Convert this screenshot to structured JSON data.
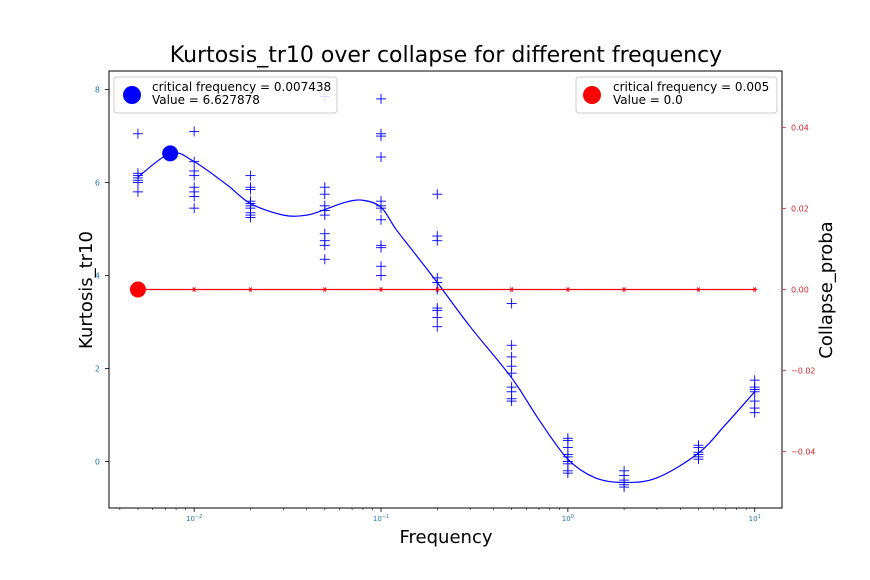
{
  "chart_data": {
    "type": "scatter",
    "title": "Kurtosis_tr10 over collapse for different frequency",
    "xlabel": "Frequency",
    "ylabel": "Kurtosis_tr10",
    "y2label": "Collapse_proba",
    "xscale": "log",
    "xlim": [
      0.0035,
      14
    ],
    "ylim": [
      -1.0,
      8.4
    ],
    "y2lim": [
      -0.054,
      0.054
    ],
    "x_ticks": [
      {
        "value": 0.01,
        "base": "10",
        "exp": "−2"
      },
      {
        "value": 0.1,
        "base": "10",
        "exp": "−1"
      },
      {
        "value": 1,
        "base": "10",
        "exp": "0"
      },
      {
        "value": 10,
        "base": "10",
        "exp": "1"
      }
    ],
    "y_ticks": [
      {
        "value": 0,
        "label": "0"
      },
      {
        "value": 2,
        "label": "2"
      },
      {
        "value": 4,
        "label": "4"
      },
      {
        "value": 6,
        "label": "6"
      },
      {
        "value": 8,
        "label": "8"
      }
    ],
    "y2_ticks": [
      {
        "value": 0.04,
        "label": "0.04"
      },
      {
        "value": 0.02,
        "label": "0.02"
      },
      {
        "value": 0.0,
        "label": "0.00"
      },
      {
        "value": -0.02,
        "label": "−0.02"
      },
      {
        "value": -0.04,
        "label": "−0.04"
      }
    ],
    "series": [
      {
        "kind": "scatter",
        "marker": "plus",
        "color": "#0000ff",
        "axis": "left",
        "points": [
          [
            0.005,
            7.05
          ],
          [
            0.005,
            6.2
          ],
          [
            0.005,
            6.15
          ],
          [
            0.005,
            6.1
          ],
          [
            0.005,
            6.05
          ],
          [
            0.005,
            6.0
          ],
          [
            0.005,
            5.8
          ],
          [
            0.01,
            7.1
          ],
          [
            0.01,
            6.45
          ],
          [
            0.01,
            6.25
          ],
          [
            0.01,
            6.15
          ],
          [
            0.01,
            5.9
          ],
          [
            0.01,
            5.8
          ],
          [
            0.01,
            5.7
          ],
          [
            0.01,
            5.45
          ],
          [
            0.02,
            6.15
          ],
          [
            0.02,
            5.9
          ],
          [
            0.02,
            5.85
          ],
          [
            0.02,
            5.6
          ],
          [
            0.02,
            5.55
          ],
          [
            0.02,
            5.5
          ],
          [
            0.02,
            5.45
          ],
          [
            0.02,
            5.35
          ],
          [
            0.02,
            5.3
          ],
          [
            0.02,
            5.25
          ],
          [
            0.05,
            7.85
          ],
          [
            0.05,
            5.9
          ],
          [
            0.05,
            5.75
          ],
          [
            0.05,
            5.5
          ],
          [
            0.05,
            5.4
          ],
          [
            0.05,
            5.3
          ],
          [
            0.05,
            4.9
          ],
          [
            0.05,
            4.75
          ],
          [
            0.05,
            4.65
          ],
          [
            0.05,
            4.35
          ],
          [
            0.1,
            7.8
          ],
          [
            0.1,
            7.05
          ],
          [
            0.1,
            7.0
          ],
          [
            0.1,
            6.55
          ],
          [
            0.1,
            5.6
          ],
          [
            0.1,
            5.5
          ],
          [
            0.1,
            5.45
          ],
          [
            0.1,
            5.2
          ],
          [
            0.1,
            4.65
          ],
          [
            0.1,
            4.6
          ],
          [
            0.1,
            4.2
          ],
          [
            0.1,
            4.0
          ],
          [
            0.2,
            5.75
          ],
          [
            0.2,
            4.85
          ],
          [
            0.2,
            4.75
          ],
          [
            0.2,
            3.95
          ],
          [
            0.2,
            3.85
          ],
          [
            0.2,
            3.7
          ],
          [
            0.2,
            3.3
          ],
          [
            0.2,
            3.25
          ],
          [
            0.2,
            3.1
          ],
          [
            0.2,
            2.9
          ],
          [
            0.5,
            3.4
          ],
          [
            0.5,
            2.5
          ],
          [
            0.5,
            2.25
          ],
          [
            0.5,
            2.05
          ],
          [
            0.5,
            1.9
          ],
          [
            0.5,
            1.6
          ],
          [
            0.5,
            1.5
          ],
          [
            0.5,
            1.35
          ],
          [
            0.5,
            1.3
          ],
          [
            1,
            0.5
          ],
          [
            1,
            0.45
          ],
          [
            1,
            0.3
          ],
          [
            1,
            0.15
          ],
          [
            1,
            0.1
          ],
          [
            1,
            0.0
          ],
          [
            1,
            -0.05
          ],
          [
            1,
            -0.2
          ],
          [
            1,
            -0.25
          ],
          [
            2,
            -0.2
          ],
          [
            2,
            -0.3
          ],
          [
            2,
            -0.4
          ],
          [
            2,
            -0.45
          ],
          [
            2,
            -0.5
          ],
          [
            2,
            -0.55
          ],
          [
            5,
            0.35
          ],
          [
            5,
            0.3
          ],
          [
            5,
            0.2
          ],
          [
            5,
            0.15
          ],
          [
            5,
            0.1
          ],
          [
            5,
            0.05
          ],
          [
            10,
            1.75
          ],
          [
            10,
            1.6
          ],
          [
            10,
            1.55
          ],
          [
            10,
            1.5
          ],
          [
            10,
            1.3
          ],
          [
            10,
            1.15
          ],
          [
            10,
            1.05
          ]
        ]
      },
      {
        "kind": "line",
        "color": "#0000ff",
        "axis": "left",
        "x": [
          0.005,
          0.0075,
          0.01,
          0.015,
          0.02,
          0.03,
          0.04,
          0.05,
          0.065,
          0.08,
          0.1,
          0.12,
          0.15,
          0.2,
          0.3,
          0.5,
          0.7,
          1.0,
          1.4,
          2.0,
          3.0,
          5.0,
          7.0,
          10.0
        ],
        "y": [
          6.12,
          6.63,
          6.45,
          5.95,
          5.55,
          5.3,
          5.3,
          5.42,
          5.58,
          5.62,
          5.47,
          5.0,
          4.5,
          3.85,
          2.9,
          1.8,
          0.9,
          0.05,
          -0.35,
          -0.45,
          -0.35,
          0.18,
          0.8,
          1.5
        ]
      },
      {
        "kind": "line",
        "marker": "star",
        "color": "#ff0000",
        "axis": "right",
        "x": [
          0.005,
          0.01,
          0.02,
          0.05,
          0.1,
          0.2,
          0.5,
          1,
          2,
          5,
          10
        ],
        "y": [
          0,
          0,
          0,
          0,
          0,
          0,
          0,
          0,
          0,
          0,
          0
        ]
      }
    ],
    "critical_points": [
      {
        "x": 0.007438,
        "y": 6.627878,
        "axis": "left",
        "color": "#0000ff"
      },
      {
        "x": 0.005,
        "y": 0.0,
        "axis": "right",
        "color": "#ff0000"
      }
    ],
    "legends": [
      {
        "position": "upper-left",
        "color": "#0000ff",
        "line1": "critical frequency = 0.007438",
        "line2": "Value = 6.627878"
      },
      {
        "position": "upper-right",
        "color": "#ff0000",
        "line1": "critical frequency = 0.005",
        "line2": "Value = 0.0"
      }
    ],
    "colors": {
      "left_axis": "#1f77b4",
      "right_axis": "#d62728",
      "blue": "#0000ff",
      "red": "#ff0000"
    }
  }
}
